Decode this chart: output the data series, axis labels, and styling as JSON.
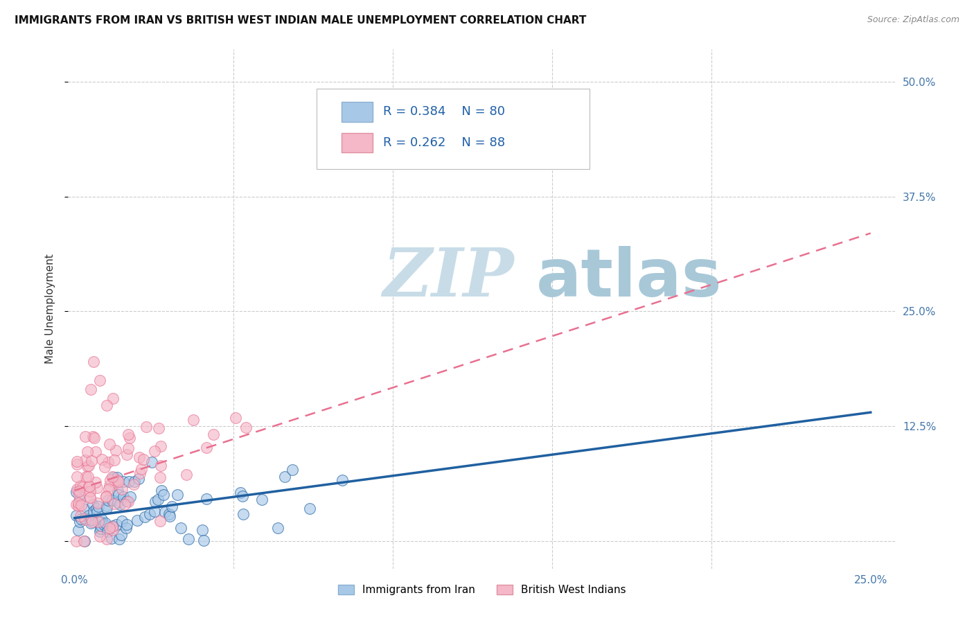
{
  "title": "IMMIGRANTS FROM IRAN VS BRITISH WEST INDIAN MALE UNEMPLOYMENT CORRELATION CHART",
  "source": "Source: ZipAtlas.com",
  "ylabel": "Male Unemployment",
  "legend_iran": "Immigrants from Iran",
  "legend_bwi": "British West Indians",
  "R_iran": "R = 0.384",
  "N_iran": "N = 80",
  "R_bwi": "R = 0.262",
  "N_bwi": "N = 88",
  "color_iran": "#a8c8e8",
  "color_bwi": "#f4b8c8",
  "color_iran_line": "#2060a0",
  "color_bwi_line": "#e87090",
  "watermark_zip": "ZIP",
  "watermark_atlas": "atlas",
  "watermark_color_zip": "#c8dce8",
  "watermark_color_atlas": "#a8c8d8",
  "background_color": "#ffffff",
  "grid_color": "#cccccc",
  "xlim_min": -0.002,
  "xlim_max": 0.258,
  "ylim_min": -0.03,
  "ylim_max": 0.535,
  "ytick_positions": [
    0.0,
    0.125,
    0.25,
    0.375,
    0.5
  ],
  "ytick_labels": [
    "",
    "12.5%",
    "25.0%",
    "37.5%",
    "50.0%"
  ],
  "xtick_positions": [
    0.0,
    0.05,
    0.1,
    0.15,
    0.2,
    0.25
  ],
  "xtick_labels": [
    "0.0%",
    "",
    "",
    "",
    "",
    "25.0%"
  ],
  "iran_trendline_x": [
    0.0,
    0.25
  ],
  "iran_trendline_y": [
    0.025,
    0.14
  ],
  "bwi_trendline_x": [
    0.0,
    0.125
  ],
  "bwi_trendline_y": [
    0.055,
    0.195
  ]
}
